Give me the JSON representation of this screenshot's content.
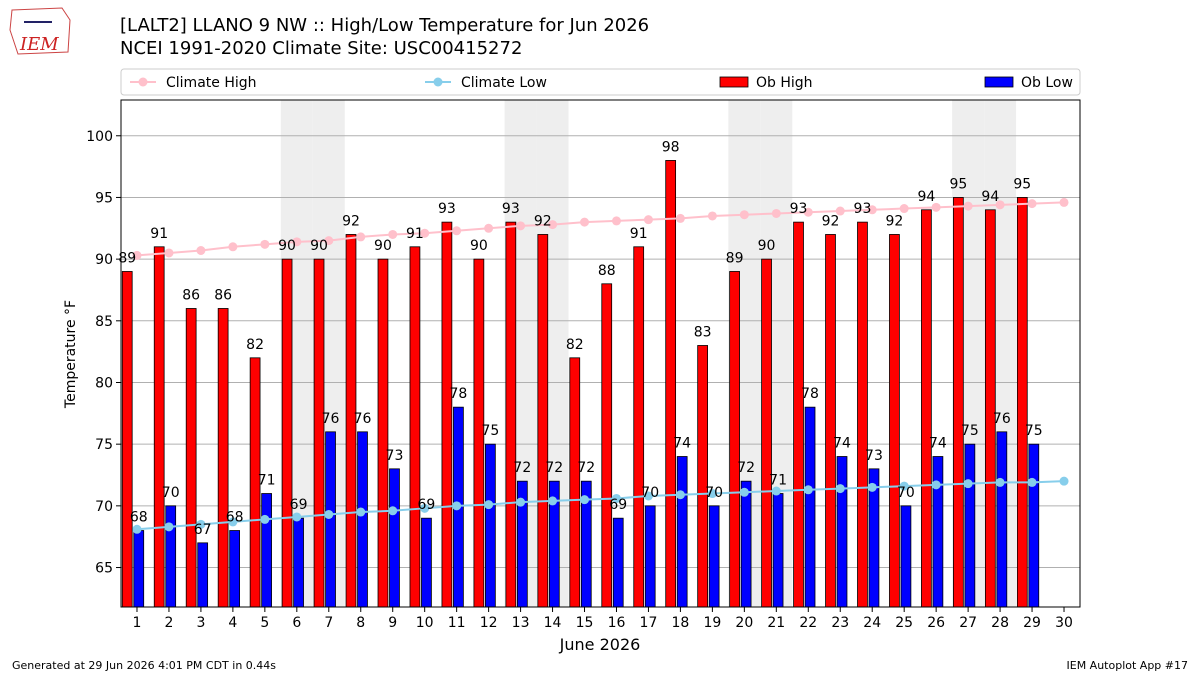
{
  "chart_data": {
    "type": "bar",
    "logo_text": "IEM",
    "title": "[LALT2] LLANO 9 NW :: High/Low Temperature for Jun 2026",
    "subtitle": "NCEI 1991-2020 Climate Site: USC00415272",
    "y_label": "Temperature °F",
    "x_label": "June 2026",
    "footer_left": "Generated at 29 Jun 2026 4:01 PM CDT in 0.44s",
    "footer_right": "IEM Autoplot App #17",
    "x": [
      1,
      2,
      3,
      4,
      5,
      6,
      7,
      8,
      9,
      10,
      11,
      12,
      13,
      14,
      15,
      16,
      17,
      18,
      19,
      20,
      21,
      22,
      23,
      24,
      25,
      26,
      27,
      28,
      29,
      30
    ],
    "xlim": [
      0.5,
      30.5
    ],
    "ylim": [
      61.8,
      102.9
    ],
    "yticks": [
      65,
      70,
      75,
      80,
      85,
      90,
      95,
      100
    ],
    "grid": true,
    "shaded_days": [
      6,
      7,
      13,
      14,
      20,
      21,
      27,
      28
    ],
    "series": [
      {
        "name": "Climate High",
        "type": "line",
        "color": "#ffc0cb",
        "values": [
          90.3,
          90.5,
          90.7,
          91.0,
          91.2,
          91.4,
          91.5,
          91.8,
          92.0,
          92.1,
          92.3,
          92.5,
          92.7,
          92.8,
          93.0,
          93.1,
          93.2,
          93.3,
          93.5,
          93.6,
          93.7,
          93.8,
          93.9,
          94.0,
          94.1,
          94.2,
          94.3,
          94.4,
          94.5,
          94.6
        ]
      },
      {
        "name": "Climate Low",
        "type": "line",
        "color": "#87ceeb",
        "values": [
          68.1,
          68.3,
          68.5,
          68.7,
          68.9,
          69.1,
          69.3,
          69.5,
          69.6,
          69.8,
          70.0,
          70.1,
          70.3,
          70.4,
          70.5,
          70.6,
          70.8,
          70.9,
          71.0,
          71.1,
          71.2,
          71.3,
          71.4,
          71.5,
          71.6,
          71.7,
          71.8,
          71.9,
          71.9,
          72.0
        ]
      },
      {
        "name": "Ob High",
        "type": "bar",
        "color": "#ff0000",
        "values": [
          89,
          91,
          86,
          86,
          82,
          90,
          90,
          92,
          90,
          91,
          93,
          90,
          93,
          92,
          82,
          88,
          91,
          98,
          83,
          89,
          90,
          93,
          92,
          93,
          92,
          94,
          95,
          94,
          95,
          null
        ]
      },
      {
        "name": "Ob Low",
        "type": "bar",
        "color": "#0000ff",
        "values": [
          68,
          70,
          67,
          68,
          71,
          69,
          76,
          76,
          73,
          69,
          78,
          75,
          72,
          72,
          72,
          69,
          70,
          74,
          70,
          72,
          71,
          78,
          74,
          73,
          70,
          74,
          75,
          76,
          75,
          null
        ]
      }
    ]
  }
}
